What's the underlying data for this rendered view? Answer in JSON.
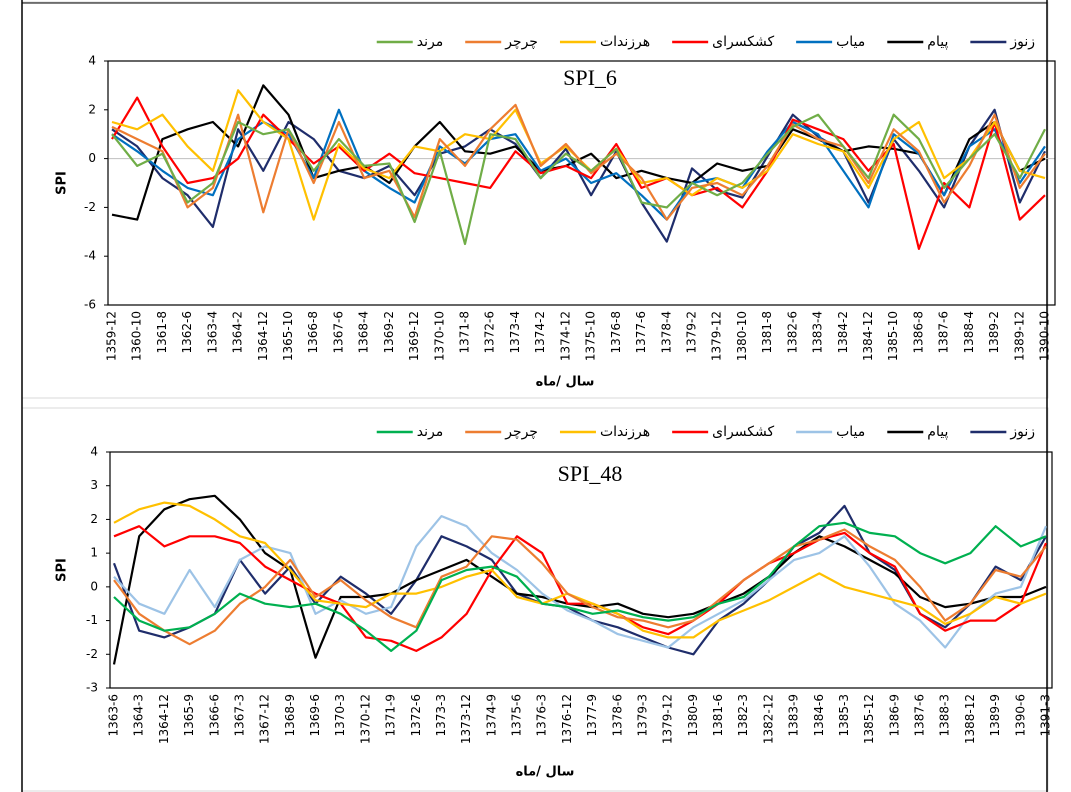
{
  "chart_data": [
    {
      "type": "line",
      "title": "SPI_6",
      "xlabel": "سال /ماه",
      "ylabel": "SPI",
      "zero_line": true,
      "categories": [
        "1359-12",
        "1360-10",
        "1361-8",
        "1362-6",
        "1363-4",
        "1364-2",
        "1364-12",
        "1365-10",
        "1366-8",
        "1367-6",
        "1368-4",
        "1369-2",
        "1369-12",
        "1370-10",
        "1371-8",
        "1372-6",
        "1373-4",
        "1374-2",
        "1374-12",
        "1375-10",
        "1376-8",
        "1377-6",
        "1378-4",
        "1379-2",
        "1379-12",
        "1380-10",
        "1381-8",
        "1382-6",
        "1383-4",
        "1384-2",
        "1384-12",
        "1385-10",
        "1386-8",
        "1387-6",
        "1388-4",
        "1389-2",
        "1389-12",
        "1390-10"
      ],
      "ylim": [
        -6,
        4
      ],
      "yticks": [
        -6,
        -4,
        -2,
        0,
        2,
        4
      ],
      "series": [
        {
          "name": "زنوز",
          "color": "#1f2d6b",
          "values": [
            1.2,
            0.5,
            -0.8,
            -1.5,
            -2.8,
            1.2,
            -0.5,
            1.5,
            0.8,
            -0.5,
            -0.8,
            -0.3,
            -1.5,
            0.2,
            0.5,
            1.2,
            0.6,
            -0.8,
            0.4,
            -1.5,
            0.3,
            -1.8,
            -3.4,
            -0.4,
            -1.3,
            -1.6,
            0.1,
            1.8,
            0.9,
            0.3,
            -1.8,
            0.8,
            -0.5,
            -2.0,
            0.5,
            2.0,
            -1.8,
            0.3
          ]
        },
        {
          "name": "پیام",
          "color": "#000000",
          "values": [
            -2.3,
            -2.5,
            0.8,
            1.2,
            1.5,
            0.5,
            3.0,
            1.8,
            -0.8,
            -0.5,
            -0.3,
            -1.0,
            0.5,
            1.5,
            0.3,
            0.2,
            0.5,
            -0.5,
            -0.3,
            0.2,
            -0.8,
            -0.5,
            -0.8,
            -1.0,
            -0.2,
            -0.5,
            -0.3,
            1.2,
            0.8,
            0.3,
            0.5,
            0.4,
            0.2,
            -1.5,
            0.8,
            1.5,
            -0.5,
            0.0
          ]
        },
        {
          "name": "میاب",
          "color": "#0070c0",
          "values": [
            1.0,
            0.3,
            -0.5,
            -1.2,
            -1.5,
            0.8,
            1.5,
            1.0,
            -0.8,
            2.0,
            -0.5,
            -1.2,
            -1.8,
            0.5,
            -0.2,
            0.8,
            1.0,
            -0.5,
            0.0,
            -1.0,
            -0.6,
            -1.5,
            -2.5,
            -1.0,
            -0.8,
            -1.2,
            0.3,
            1.5,
            1.0,
            -0.5,
            -2.0,
            1.0,
            0.2,
            -1.5,
            0.5,
            1.2,
            -1.0,
            0.5
          ]
        },
        {
          "name": "کشکسرای",
          "color": "#ff0000",
          "values": [
            0.8,
            2.5,
            0.5,
            -1.0,
            -0.8,
            0.0,
            1.8,
            0.8,
            -0.2,
            0.5,
            -0.5,
            0.2,
            -0.6,
            -0.8,
            -1.0,
            -1.2,
            0.3,
            -0.6,
            -0.3,
            -0.8,
            0.6,
            -1.2,
            -0.8,
            -1.5,
            -1.2,
            -2.0,
            -0.5,
            1.6,
            1.2,
            0.8,
            -0.5,
            0.6,
            -3.7,
            -1.0,
            -2.0,
            1.5,
            -2.5,
            -1.5
          ]
        },
        {
          "name": "هرزندات",
          "color": "#ffc000",
          "values": [
            1.5,
            1.2,
            1.8,
            0.5,
            -0.5,
            2.8,
            1.5,
            0.8,
            -2.5,
            0.6,
            -0.4,
            -0.8,
            0.5,
            0.3,
            1.0,
            0.8,
            2.0,
            -0.2,
            0.5,
            -0.5,
            0.4,
            -1.0,
            -0.8,
            -1.5,
            -0.8,
            -1.2,
            -0.5,
            1.0,
            0.6,
            0.3,
            -1.2,
            0.8,
            1.5,
            -0.8,
            0.0,
            1.5,
            -0.5,
            -0.8
          ]
        },
        {
          "name": "چرچر",
          "color": "#ed7d31",
          "values": [
            1.3,
            0.8,
            0.3,
            -2.0,
            -1.2,
            1.8,
            -2.2,
            1.2,
            -1.0,
            1.5,
            -0.8,
            -0.5,
            -2.4,
            0.8,
            -0.3,
            1.2,
            2.2,
            -0.3,
            0.6,
            -0.6,
            0.2,
            -0.8,
            -2.5,
            -1.2,
            -1.0,
            -1.5,
            -0.3,
            1.4,
            0.8,
            0.5,
            -1.0,
            1.2,
            0.3,
            -1.8,
            -0.3,
            1.8,
            -1.2,
            0.2
          ]
        },
        {
          "name": "مرند",
          "color": "#70ad47",
          "values": [
            1.0,
            -0.3,
            0.2,
            -1.8,
            -1.0,
            1.5,
            1.0,
            1.2,
            -0.5,
            0.8,
            -0.3,
            -0.2,
            -2.6,
            0.3,
            -3.5,
            1.0,
            0.8,
            -0.8,
            0.2,
            -0.5,
            0.4,
            -1.8,
            -2.0,
            -1.0,
            -1.5,
            -1.0,
            0.2,
            1.3,
            1.8,
            0.5,
            -0.8,
            1.8,
            0.8,
            -1.2,
            0.0,
            1.0,
            -0.8,
            1.2
          ]
        }
      ]
    },
    {
      "type": "line",
      "title": "SPI_48",
      "xlabel": "سال /ماه",
      "ylabel": "SPI",
      "categories": [
        "1363-6",
        "1364-3",
        "1364-12",
        "1365-9",
        "1366-6",
        "1367-3",
        "1367-12",
        "1368-9",
        "1369-6",
        "1370-3",
        "1370-12",
        "1371-9",
        "1372-6",
        "1373-3",
        "1373-12",
        "1374-9",
        "1375-6",
        "1376-3",
        "1376-12",
        "1377-9",
        "1378-6",
        "1379-3",
        "1379-12",
        "1380-9",
        "1381-6",
        "1382-3",
        "1382-12",
        "1383-9",
        "1384-6",
        "1385-3",
        "1385-12",
        "1386-9",
        "1387-6",
        "1388-3",
        "1388-12",
        "1389-9",
        "1390-6",
        "1391-3"
      ],
      "ylim": [
        -3,
        4
      ],
      "yticks": [
        -3,
        -2,
        -1,
        0,
        1,
        2,
        3,
        4
      ],
      "series": [
        {
          "name": "زنوز",
          "color": "#1f2d6b",
          "values": [
            0.7,
            -1.3,
            -1.5,
            -1.2,
            -0.8,
            0.8,
            -0.2,
            0.6,
            -0.5,
            0.3,
            -0.2,
            -0.8,
            0.2,
            1.5,
            1.2,
            0.8,
            -0.2,
            -0.5,
            -0.6,
            -1.0,
            -1.2,
            -1.5,
            -1.8,
            -2.0,
            -1.0,
            -0.5,
            0.2,
            1.2,
            1.6,
            2.4,
            1.0,
            0.5,
            -0.8,
            -1.2,
            -0.5,
            0.6,
            0.2,
            1.5
          ]
        },
        {
          "name": "پیام",
          "color": "#000000",
          "values": [
            -2.3,
            1.5,
            2.3,
            2.6,
            2.7,
            2.0,
            1.0,
            0.5,
            -2.1,
            -0.3,
            -0.3,
            -0.2,
            0.2,
            0.5,
            0.8,
            0.3,
            -0.2,
            -0.3,
            -0.5,
            -0.6,
            -0.5,
            -0.8,
            -0.9,
            -0.8,
            -0.5,
            -0.2,
            0.3,
            1.0,
            1.5,
            1.2,
            0.8,
            0.4,
            -0.3,
            -0.6,
            -0.5,
            -0.3,
            -0.3,
            0.0
          ]
        },
        {
          "name": "میاب",
          "color": "#9dc3e6",
          "values": [
            0.3,
            -0.5,
            -0.8,
            0.5,
            -0.6,
            0.8,
            1.2,
            1.0,
            -0.8,
            -0.4,
            -0.8,
            -0.6,
            1.2,
            2.1,
            1.8,
            1.0,
            0.5,
            -0.2,
            -0.7,
            -1.0,
            -1.4,
            -1.6,
            -1.8,
            -1.2,
            -0.8,
            -0.4,
            0.2,
            0.8,
            1.0,
            1.5,
            0.6,
            -0.5,
            -1.0,
            -1.8,
            -0.8,
            -0.2,
            0.0,
            1.8
          ]
        },
        {
          "name": "کشکسرای",
          "color": "#ff0000",
          "values": [
            1.5,
            1.8,
            1.2,
            1.5,
            1.5,
            1.3,
            0.6,
            0.2,
            -0.2,
            -0.5,
            -1.5,
            -1.6,
            -1.9,
            -1.5,
            -0.8,
            0.5,
            1.5,
            1.0,
            -0.5,
            -0.5,
            -0.8,
            -1.2,
            -1.4,
            -1.0,
            -0.5,
            0.2,
            0.7,
            1.0,
            1.4,
            1.6,
            1.0,
            0.6,
            -0.8,
            -1.3,
            -1.0,
            -1.0,
            -0.5,
            1.3
          ]
        },
        {
          "name": "هرزندات",
          "color": "#ffc000",
          "values": [
            1.9,
            2.3,
            2.5,
            2.4,
            2.0,
            1.5,
            1.3,
            0.5,
            -0.4,
            -0.5,
            -0.6,
            -0.2,
            -0.2,
            0.0,
            0.3,
            0.5,
            -0.3,
            -0.5,
            -0.2,
            -0.5,
            -0.8,
            -1.3,
            -1.5,
            -1.5,
            -1.0,
            -0.7,
            -0.4,
            0.0,
            0.4,
            0.0,
            -0.2,
            -0.4,
            -0.6,
            -1.1,
            -0.8,
            -0.3,
            -0.5,
            -0.2
          ]
        },
        {
          "name": "چرچر",
          "color": "#ed7d31",
          "values": [
            0.2,
            -0.8,
            -1.3,
            -1.7,
            -1.3,
            -0.5,
            0.0,
            0.8,
            -0.3,
            0.2,
            -0.4,
            -0.9,
            -1.2,
            0.3,
            0.6,
            1.5,
            1.4,
            0.7,
            -0.2,
            -0.6,
            -0.9,
            -1.0,
            -1.2,
            -1.0,
            -0.4,
            0.2,
            0.7,
            1.2,
            1.4,
            1.7,
            1.2,
            0.8,
            0.0,
            -1.0,
            -0.5,
            0.5,
            0.3,
            1.2
          ]
        },
        {
          "name": "مرند",
          "color": "#00b050",
          "values": [
            -0.3,
            -1.0,
            -1.3,
            -1.2,
            -0.8,
            -0.2,
            -0.5,
            -0.6,
            -0.5,
            -0.8,
            -1.3,
            -1.9,
            -1.3,
            0.2,
            0.5,
            0.6,
            0.3,
            -0.5,
            -0.6,
            -0.8,
            -0.7,
            -0.9,
            -1.0,
            -0.9,
            -0.5,
            -0.3,
            0.3,
            1.2,
            1.8,
            1.9,
            1.6,
            1.5,
            1.0,
            0.7,
            1.0,
            1.8,
            1.2,
            1.5
          ]
        }
      ]
    }
  ]
}
